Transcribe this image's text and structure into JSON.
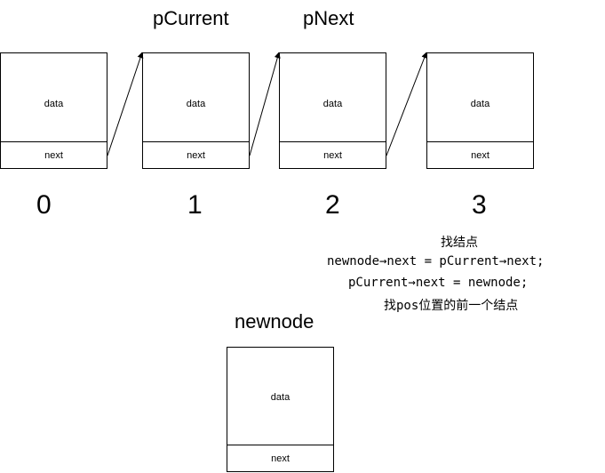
{
  "nodes": [
    {
      "data_label": "data",
      "next_label": "next",
      "index": "0"
    },
    {
      "data_label": "data",
      "next_label": "next",
      "index": "1"
    },
    {
      "data_label": "data",
      "next_label": "next",
      "index": "2"
    },
    {
      "data_label": "data",
      "next_label": "next",
      "index": "3"
    }
  ],
  "pointer_labels": {
    "pcurrent": "pCurrent",
    "pnext": "pNext"
  },
  "notes": [
    "找结点",
    "newnode→next = pCurrent→next;",
    "pCurrent→next = newnode;",
    "找pos位置的前一个结点"
  ],
  "newnode": {
    "title": "newnode",
    "data_label": "data",
    "next_label": "next"
  }
}
